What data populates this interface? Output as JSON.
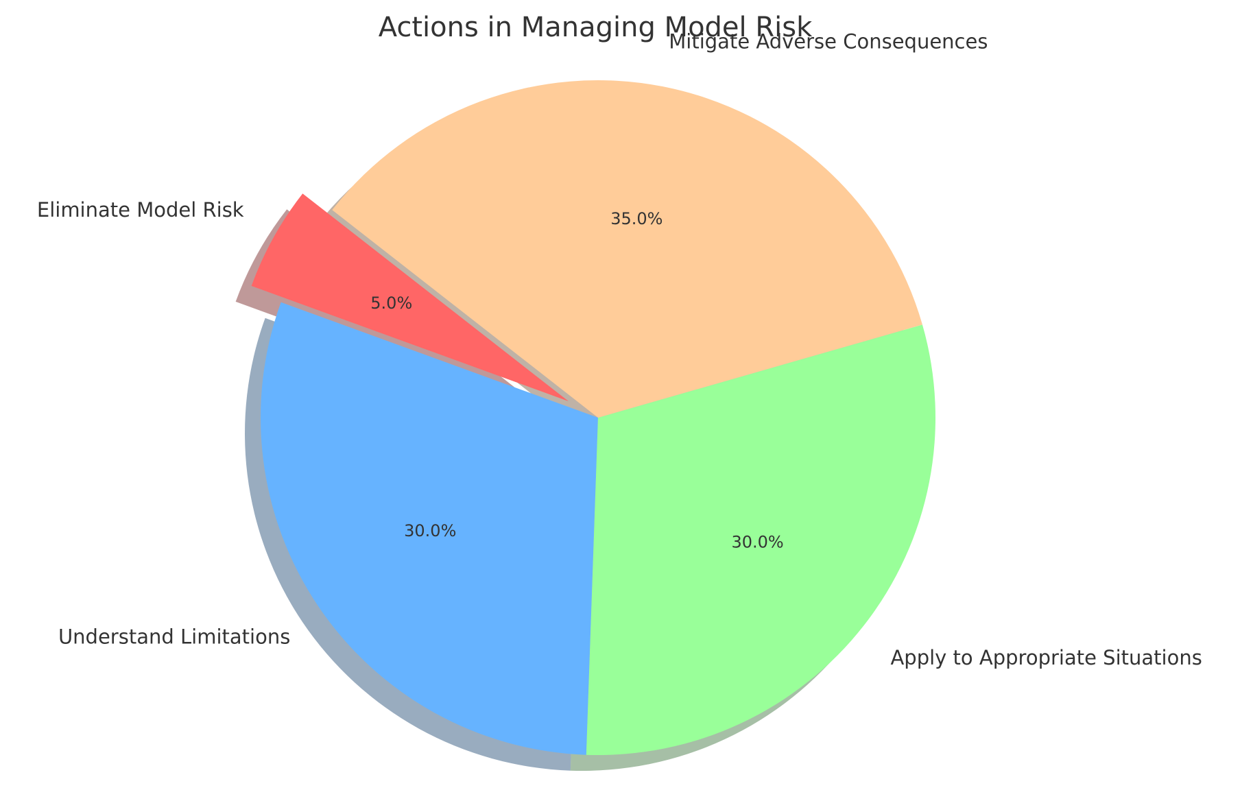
{
  "chart_data": {
    "type": "pie",
    "title": "Actions in Managing Model Risk",
    "categories": [
      "Understand Limitations",
      "Apply to Appropriate Situations",
      "Mitigate Adverse Consequences",
      "Eliminate Model Risk"
    ],
    "values": [
      30,
      30,
      35,
      5
    ],
    "percent_labels": [
      "30.0%",
      "30.0%",
      "35.0%",
      "5.0%"
    ],
    "colors": [
      "#66b3ff",
      "#99ff99",
      "#ffcc99",
      "#ff6666"
    ],
    "exploded": [
      false,
      false,
      false,
      true
    ],
    "start_angle_deg": 160,
    "shadow": true,
    "legend": "none"
  }
}
